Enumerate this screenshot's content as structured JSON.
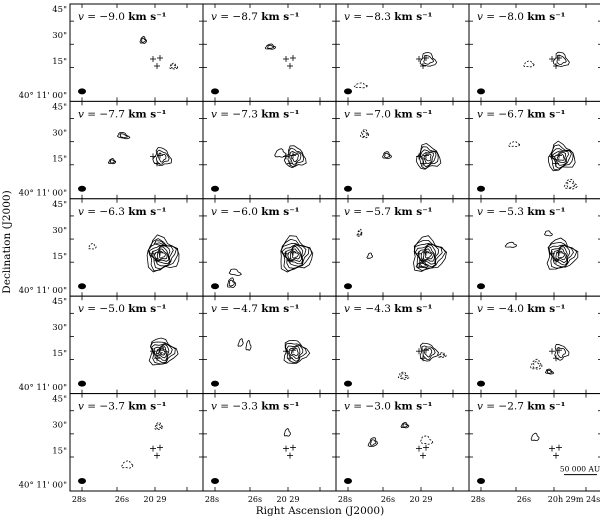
{
  "figure": {
    "xlabel": "Right Ascension (J2000)",
    "ylabel": "Declination (J2000)",
    "dec_ticks": [
      "45\"",
      "30\"",
      "15\"",
      "40° 11' 00\""
    ],
    "ra_ticks_left": [
      "28s",
      "26s",
      "20 29",
      "24s"
    ],
    "ra_ticks_right": [
      "28s",
      "26s",
      "20h 29m 24s"
    ],
    "scale_bar_label": "50 000 AU",
    "velocity_unit": "km s⁻¹",
    "panels": [
      {
        "v": "−9.0"
      },
      {
        "v": "−8.7"
      },
      {
        "v": "−8.3"
      },
      {
        "v": "−8.0"
      },
      {
        "v": "−7.7"
      },
      {
        "v": "−7.3"
      },
      {
        "v": "−7.0"
      },
      {
        "v": "−6.7"
      },
      {
        "v": "−6.3"
      },
      {
        "v": "−6.0"
      },
      {
        "v": "−5.7"
      },
      {
        "v": "−5.3"
      },
      {
        "v": "−5.0"
      },
      {
        "v": "−4.7"
      },
      {
        "v": "−4.3"
      },
      {
        "v": "−4.0"
      },
      {
        "v": "−3.7"
      },
      {
        "v": "−3.3"
      },
      {
        "v": "−3.0"
      },
      {
        "v": "−2.7"
      }
    ]
  }
}
